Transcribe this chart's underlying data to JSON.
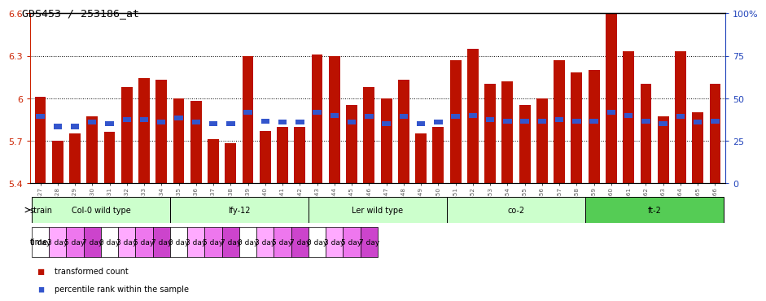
{
  "title": "GDS453 / 253186_at",
  "samples": [
    "GSM8827",
    "GSM8828",
    "GSM8829",
    "GSM8830",
    "GSM8831",
    "GSM8832",
    "GSM8833",
    "GSM8834",
    "GSM8835",
    "GSM8836",
    "GSM8837",
    "GSM8838",
    "GSM8839",
    "GSM8840",
    "GSM8841",
    "GSM8842",
    "GSM8843",
    "GSM8844",
    "GSM8845",
    "GSM8846",
    "GSM8847",
    "GSM8848",
    "GSM8849",
    "GSM8850",
    "GSM8851",
    "GSM8852",
    "GSM8853",
    "GSM8854",
    "GSM8855",
    "GSM8856",
    "GSM8857",
    "GSM8858",
    "GSM8859",
    "GSM8860",
    "GSM8861",
    "GSM8862",
    "GSM8863",
    "GSM8864",
    "GSM8865",
    "GSM8866"
  ],
  "red_values": [
    6.01,
    5.7,
    5.75,
    5.87,
    5.76,
    6.08,
    6.14,
    6.13,
    6.0,
    5.98,
    5.71,
    5.68,
    6.3,
    5.77,
    5.8,
    5.8,
    6.31,
    6.3,
    5.95,
    6.08,
    6.0,
    6.13,
    5.75,
    5.8,
    6.27,
    6.35,
    6.1,
    6.12,
    5.95,
    6.0,
    6.27,
    6.18,
    6.2,
    6.6,
    6.33,
    6.1,
    5.87,
    6.33,
    5.9,
    6.1
  ],
  "blue_values": [
    5.87,
    5.8,
    5.8,
    5.83,
    5.82,
    5.85,
    5.85,
    5.83,
    5.86,
    5.83,
    5.82,
    5.82,
    5.9,
    5.84,
    5.83,
    5.83,
    5.9,
    5.88,
    5.83,
    5.87,
    5.82,
    5.87,
    5.82,
    5.83,
    5.87,
    5.88,
    5.85,
    5.84,
    5.84,
    5.84,
    5.85,
    5.84,
    5.84,
    5.9,
    5.88,
    5.84,
    5.82,
    5.87,
    5.83,
    5.84
  ],
  "ylim": [
    5.4,
    6.6
  ],
  "yticks": [
    5.4,
    5.7,
    6.0,
    6.3,
    6.6
  ],
  "ytick_labels": [
    "5.4",
    "5.7",
    "6",
    "6.3",
    "6.6"
  ],
  "right_ytick_labels": [
    "0",
    "25",
    "50",
    "75",
    "100%"
  ],
  "strains": [
    {
      "name": "Col-0 wild type",
      "start": 0,
      "end": 8,
      "color": "#ccffcc"
    },
    {
      "name": "lfy-12",
      "start": 8,
      "end": 16,
      "color": "#ccffcc"
    },
    {
      "name": "Ler wild type",
      "start": 16,
      "end": 24,
      "color": "#ccffcc"
    },
    {
      "name": "co-2",
      "start": 24,
      "end": 32,
      "color": "#ccffcc"
    },
    {
      "name": "ft-2",
      "start": 32,
      "end": 40,
      "color": "#55cc55"
    }
  ],
  "time_labels": [
    "0 day",
    "3 day",
    "5 day",
    "7 day"
  ],
  "time_colors": [
    "#ffffff",
    "#ffaaff",
    "#ee77ee",
    "#cc44cc"
  ],
  "bar_color": "#bb1100",
  "blue_color": "#3355cc",
  "bg_color": "white",
  "axis_color": "#cc2200",
  "right_axis_color": "#2244bb",
  "label_color": "#555555",
  "grid_color": "#000000"
}
